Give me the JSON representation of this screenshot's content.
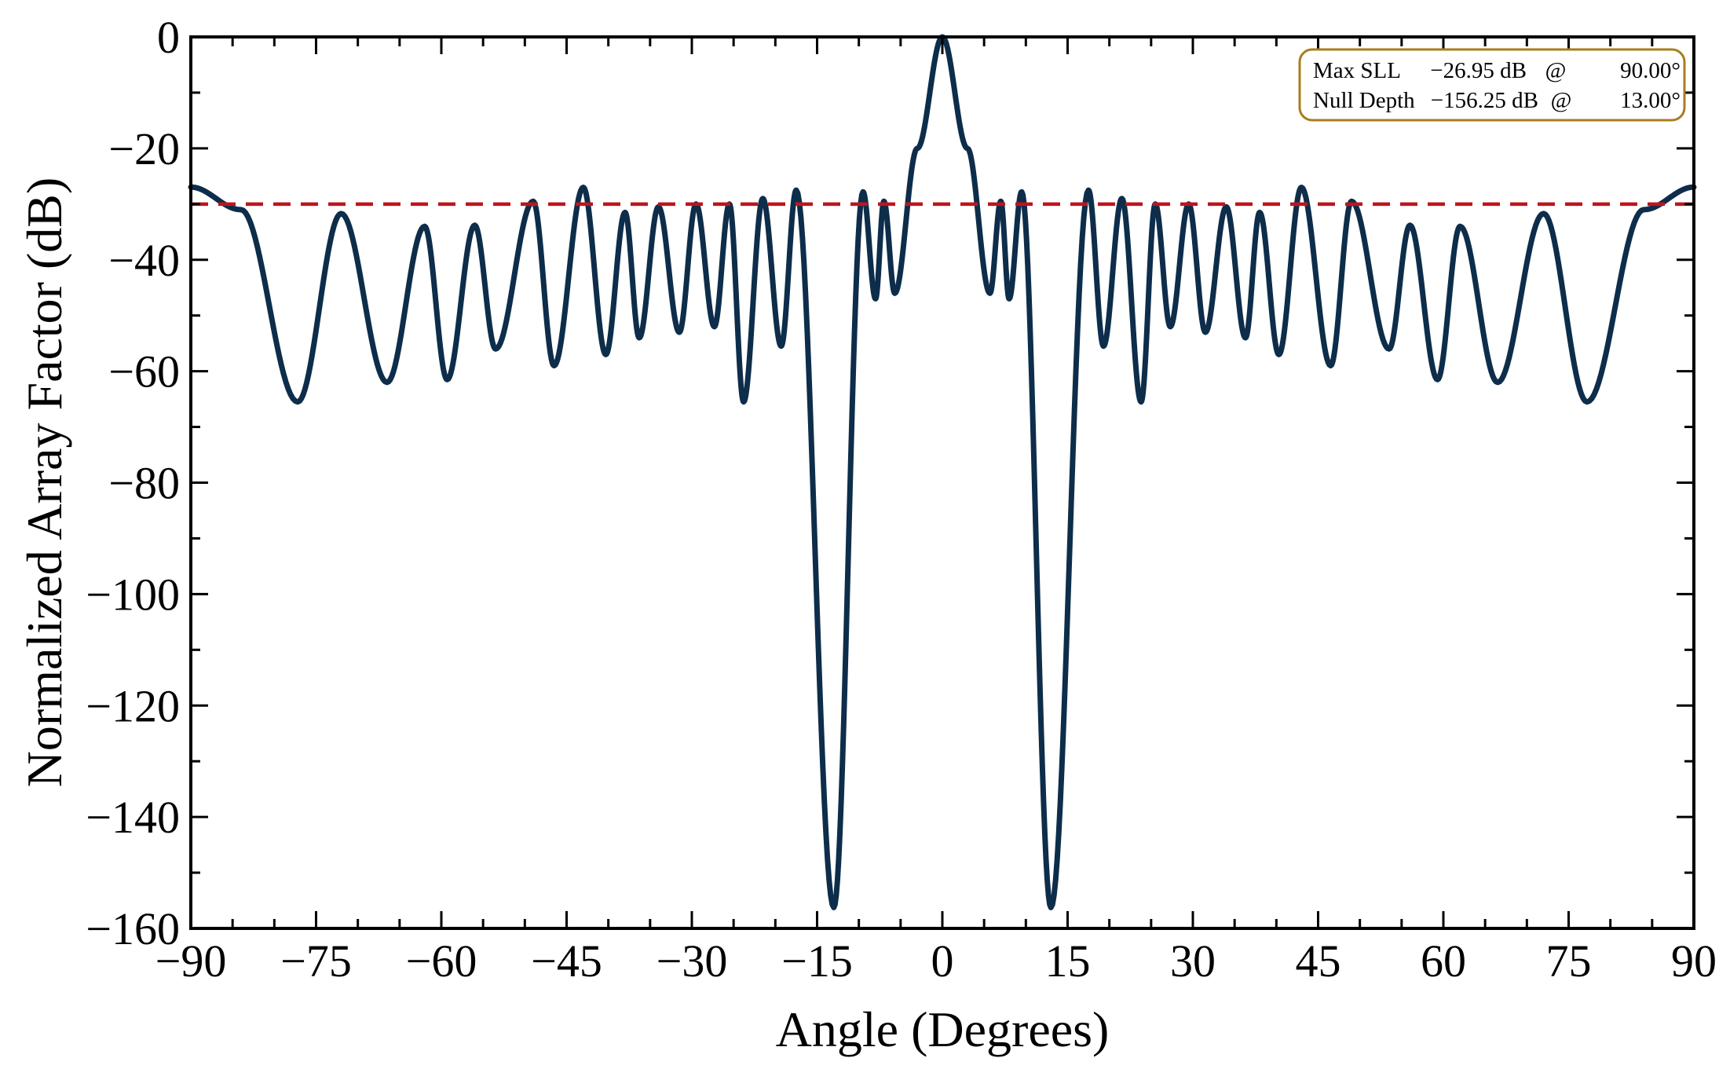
{
  "chart_data": {
    "type": "line",
    "xlabel": "Angle (Degrees)",
    "ylabel": "Normalized Array Factor (dB)",
    "xlim": [
      -90,
      90
    ],
    "ylim": [
      -160,
      0
    ],
    "xticks": [
      -90,
      -75,
      -60,
      -45,
      -30,
      -15,
      0,
      15,
      30,
      45,
      60,
      75,
      90
    ],
    "yticks": [
      0,
      -20,
      -40,
      -60,
      -80,
      -100,
      -120,
      -140,
      -160
    ],
    "xtick_labels": [
      "−90",
      "−75",
      "−60",
      "−45",
      "−30",
      "−15",
      "0",
      "15",
      "30",
      "45",
      "60",
      "75",
      "90"
    ],
    "ytick_labels": [
      "0",
      "−20",
      "−40",
      "−60",
      "−80",
      "−100",
      "−120",
      "−140",
      "−160"
    ],
    "grid": false,
    "colors": {
      "pattern": "#0d2d4a",
      "threshold": "#c0141c",
      "annotation_border": "#a87d1e"
    },
    "threshold": {
      "y": -30,
      "style": "dashed"
    },
    "series": [
      {
        "x": [
          -90,
          -84,
          -77.2,
          -72,
          -66.5,
          -62,
          -59.3,
          -56,
          -53.5,
          -49,
          -46.5,
          -43,
          -40.3,
          -38,
          -36.3,
          -34,
          -31.5,
          -29.5,
          -27.3,
          -25.5,
          -23.8,
          -21.5,
          -19.3,
          -17.5,
          -13,
          -9.5,
          -8,
          -7,
          -5.7,
          -3,
          0,
          3,
          5.7,
          7,
          8,
          9.5,
          13,
          17.5,
          19.3,
          21.5,
          23.8,
          25.5,
          27.3,
          29.5,
          31.5,
          34,
          36.3,
          38,
          40.3,
          43,
          46.5,
          49,
          53.5,
          56,
          59.3,
          62,
          66.5,
          72,
          77.2,
          84,
          90
        ],
        "y": [
          -26.95,
          -31,
          -65.5,
          -31.7,
          -62,
          -34,
          -61.5,
          -33.8,
          -56,
          -29.5,
          -59,
          -27,
          -57,
          -31.5,
          -54,
          -30.5,
          -53,
          -30,
          -52,
          -30,
          -65.5,
          -29,
          -55.5,
          -27.5,
          -156.25,
          -27.8,
          -47,
          -29.5,
          -46,
          -20,
          0,
          -20,
          -46,
          -29.5,
          -47,
          -27.8,
          -156.25,
          -27.5,
          -55.5,
          -29,
          -65.5,
          -30,
          -52,
          -30,
          -53,
          -30.5,
          -54,
          -31.5,
          -57,
          -27,
          -59,
          -29.5,
          -56,
          -33.8,
          -61.5,
          -34,
          -62,
          -31.7,
          -65.5,
          -31,
          -26.95
        ]
      }
    ],
    "annotation": {
      "lines": [
        {
          "label": "Max SLL",
          "value": "−26.95 dB",
          "at": "@",
          "angle": "90.00°"
        },
        {
          "label": "Null Depth",
          "value": "−156.25 dB",
          "at": "@",
          "angle": "13.00°"
        }
      ],
      "placement": "top-right"
    }
  }
}
